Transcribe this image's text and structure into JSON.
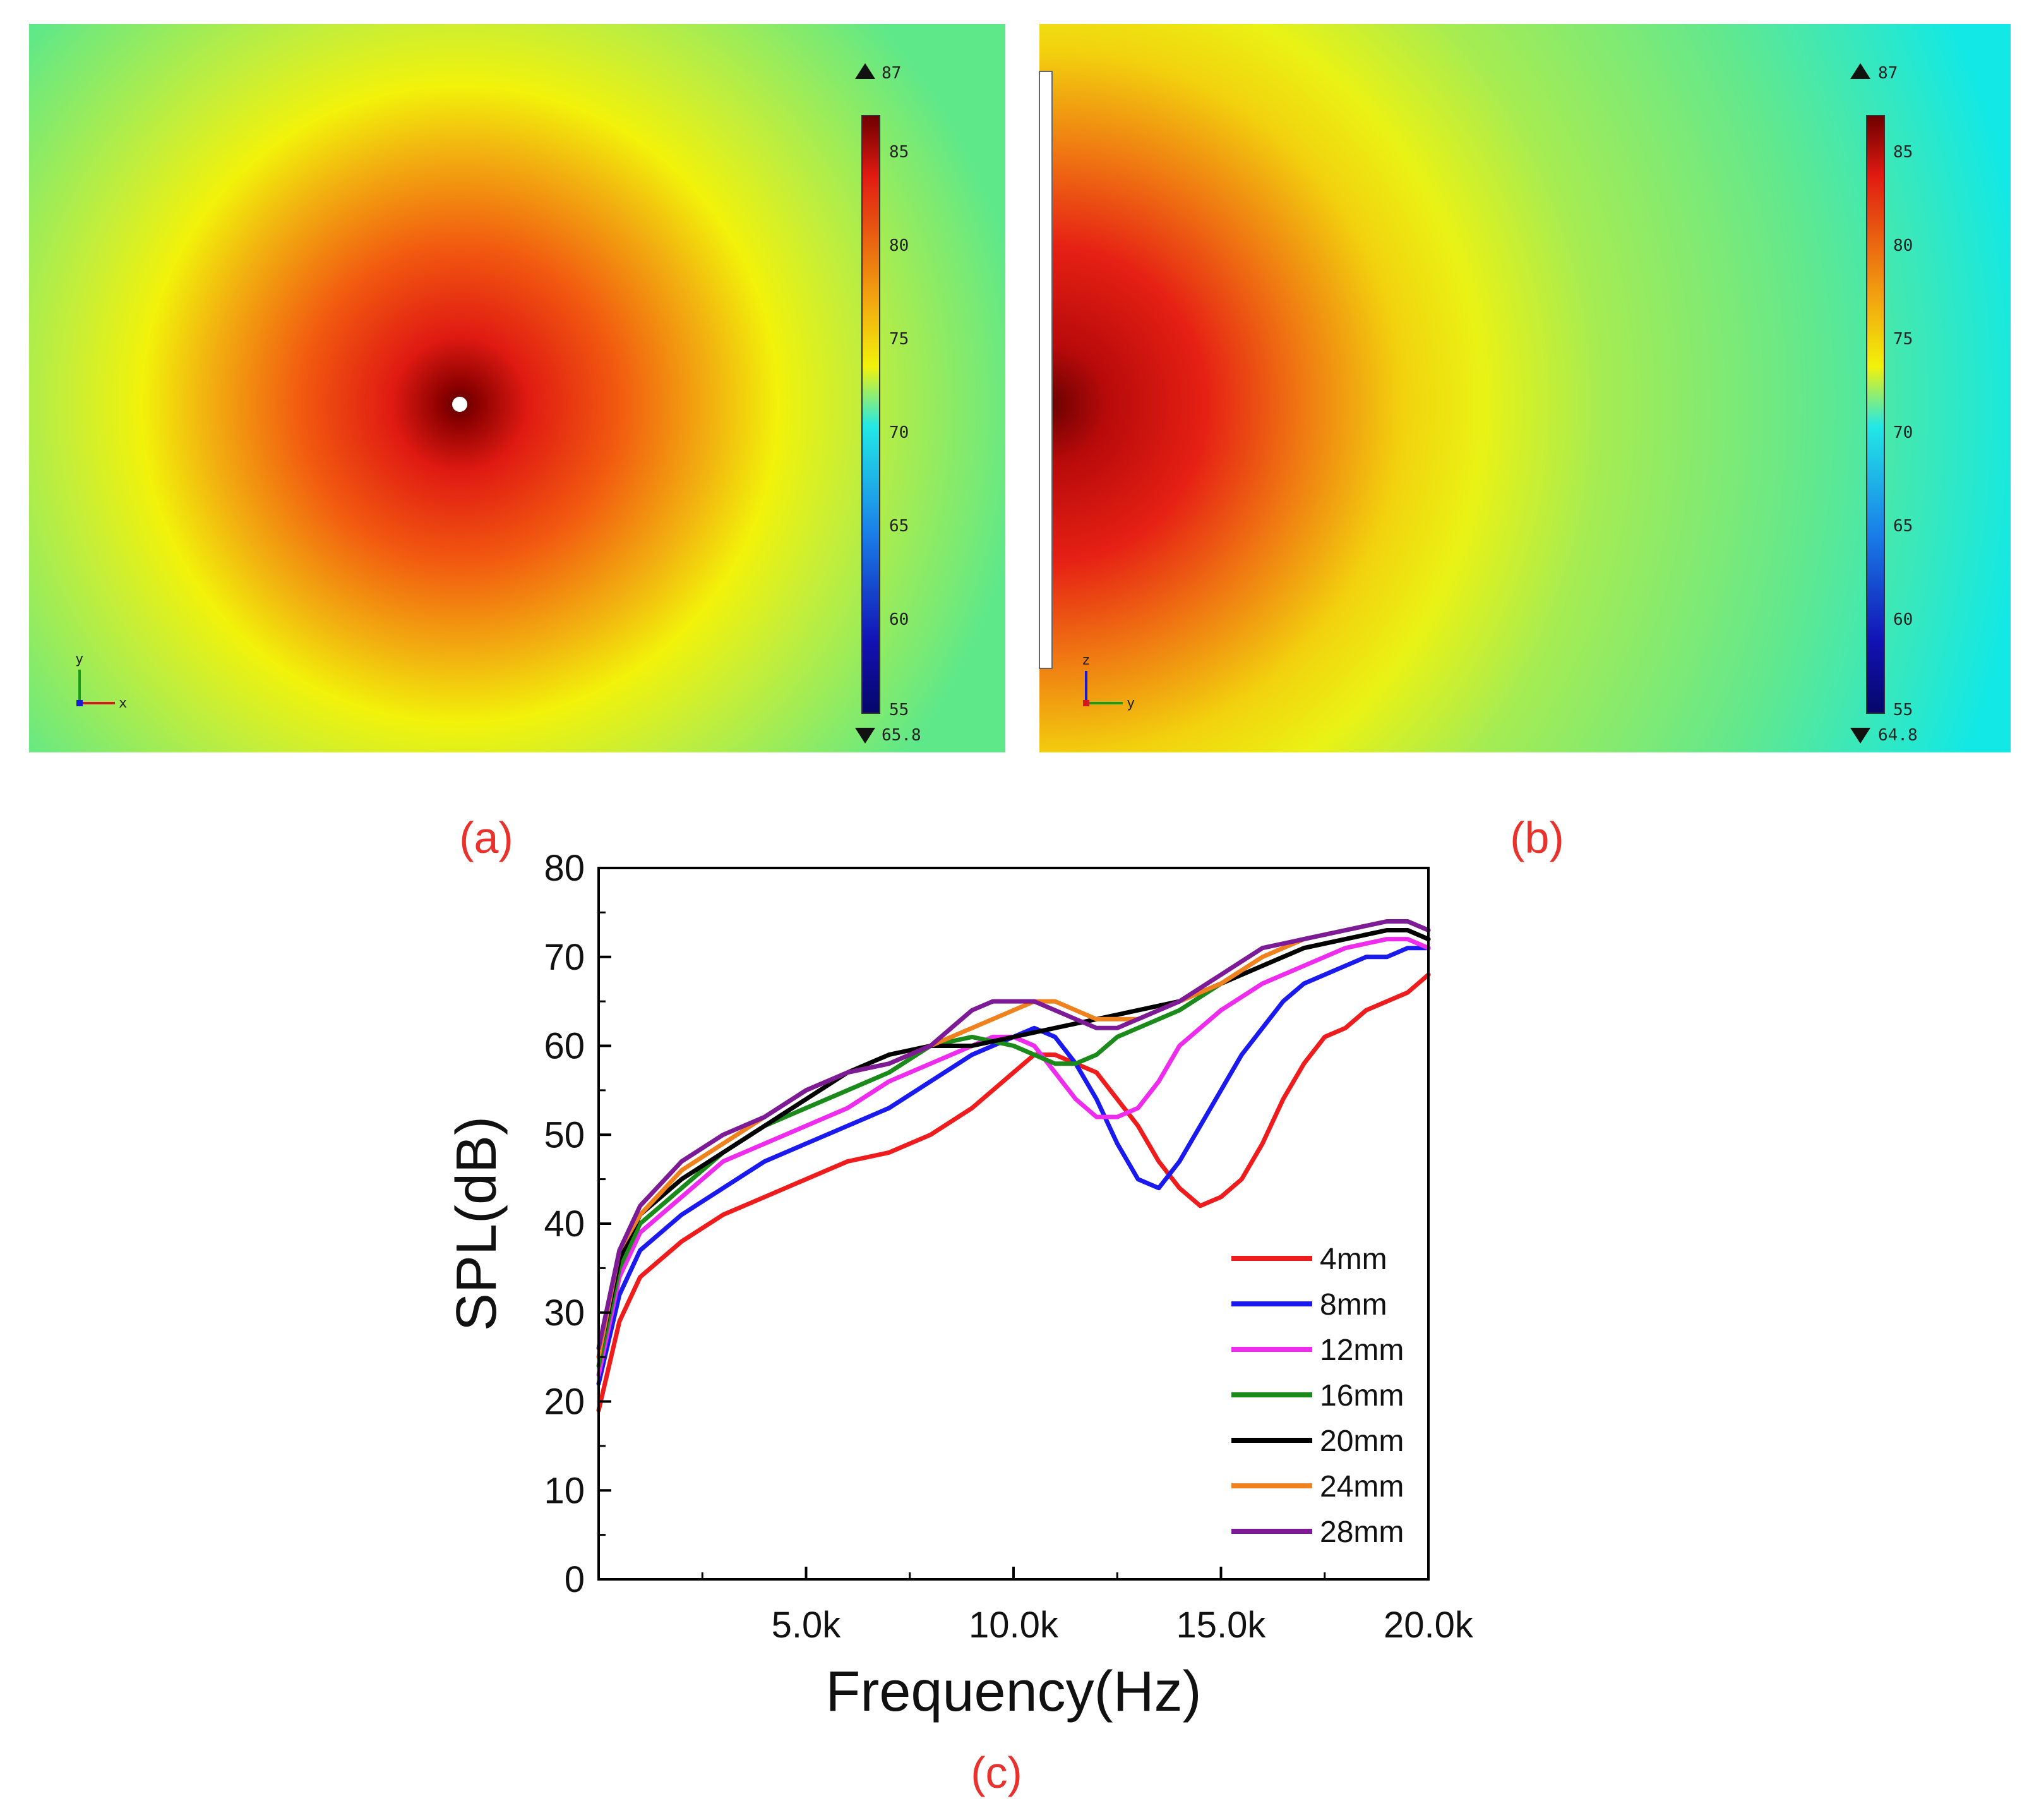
{
  "panels": {
    "a": {
      "label": "(a)",
      "colorbar": {
        "max_marker": "87",
        "min_marker": "65.8",
        "ticks": [
          "85",
          "80",
          "75",
          "70",
          "65",
          "60",
          "55"
        ],
        "range": [
          55,
          87
        ]
      },
      "axes": {
        "vertical": "y",
        "horizontal": "x"
      }
    },
    "b": {
      "label": "(b)",
      "colorbar": {
        "max_marker": "87",
        "min_marker": "64.8",
        "ticks": [
          "85",
          "80",
          "75",
          "70",
          "65",
          "60",
          "55"
        ],
        "range": [
          55,
          87
        ]
      },
      "axes": {
        "vertical": "z",
        "horizontal": "y"
      }
    },
    "c": {
      "label": "(c)"
    }
  },
  "colors": {
    "panel_label": "#e8322b",
    "field_background": "#6ee86e",
    "field_mid": "#f2f20a",
    "field_hot": "#e21a12",
    "field_core": "#7a0000",
    "right_edge_cyan": "#12e8e6"
  },
  "chart_data": {
    "type": "line",
    "title": "",
    "xlabel": "Frequency(Hz)",
    "ylabel": "SPL(dB)",
    "xlim": [
      0,
      20000
    ],
    "ylim": [
      0,
      80
    ],
    "x_ticks": [
      {
        "value": 5000,
        "label": "5.0k"
      },
      {
        "value": 10000,
        "label": "10.0k"
      },
      {
        "value": 15000,
        "label": "15.0k"
      },
      {
        "value": 20000,
        "label": "20.0k"
      }
    ],
    "y_ticks": [
      "0",
      "10",
      "20",
      "30",
      "40",
      "50",
      "60",
      "70",
      "80"
    ],
    "grid": false,
    "legend_position": "bottom-right",
    "series": [
      {
        "name": "4mm",
        "color": "#ee1c1c",
        "x": [
          0,
          500,
          1000,
          2000,
          3000,
          4000,
          5000,
          6000,
          7000,
          8000,
          9000,
          10000,
          10500,
          11000,
          12000,
          13000,
          13500,
          14000,
          14500,
          15000,
          15500,
          16000,
          16500,
          17000,
          17500,
          18000,
          18500,
          19000,
          19500,
          20000
        ],
        "y": [
          19,
          29,
          34,
          38,
          41,
          43,
          45,
          47,
          48,
          50,
          53,
          57,
          59,
          59,
          57,
          51,
          47,
          44,
          42,
          43,
          45,
          49,
          54,
          58,
          61,
          62,
          64,
          65,
          66,
          68
        ]
      },
      {
        "name": "8mm",
        "color": "#1a1aee",
        "x": [
          0,
          500,
          1000,
          2000,
          3000,
          4000,
          5000,
          6000,
          7000,
          8000,
          9000,
          10000,
          10500,
          11000,
          11500,
          12000,
          12500,
          13000,
          13500,
          14000,
          14500,
          15000,
          15500,
          16000,
          16500,
          17000,
          17500,
          18000,
          18500,
          19000,
          19500,
          20000
        ],
        "y": [
          22,
          32,
          37,
          41,
          44,
          47,
          49,
          51,
          53,
          56,
          59,
          61,
          62,
          61,
          58,
          54,
          49,
          45,
          44,
          47,
          51,
          55,
          59,
          62,
          65,
          67,
          68,
          69,
          70,
          70,
          71,
          71
        ]
      },
      {
        "name": "12mm",
        "color": "#ee2cee",
        "x": [
          0,
          500,
          1000,
          2000,
          3000,
          4000,
          5000,
          6000,
          7000,
          8000,
          9000,
          9500,
          10000,
          10500,
          11000,
          11500,
          12000,
          12500,
          13000,
          13500,
          14000,
          14500,
          15000,
          16000,
          17000,
          18000,
          19000,
          19500,
          20000
        ],
        "y": [
          23,
          34,
          39,
          43,
          47,
          49,
          51,
          53,
          56,
          58,
          60,
          61,
          61,
          60,
          57,
          54,
          52,
          52,
          53,
          56,
          60,
          62,
          64,
          67,
          69,
          71,
          72,
          72,
          71
        ]
      },
      {
        "name": "16mm",
        "color": "#1a8a1a",
        "x": [
          0,
          500,
          1000,
          2000,
          3000,
          4000,
          5000,
          6000,
          7000,
          8000,
          9000,
          10000,
          10500,
          11000,
          11500,
          12000,
          12500,
          13000,
          14000,
          15000,
          16000,
          17000,
          18000,
          19000,
          19500,
          20000
        ],
        "y": [
          24,
          35,
          40,
          44,
          48,
          51,
          53,
          55,
          57,
          60,
          61,
          60,
          59,
          58,
          58,
          59,
          61,
          62,
          64,
          67,
          69,
          71,
          72,
          73,
          73,
          72
        ]
      },
      {
        "name": "20mm",
        "color": "#000000",
        "x": [
          0,
          500,
          1000,
          2000,
          3000,
          4000,
          5000,
          6000,
          7000,
          8000,
          9000,
          10000,
          11000,
          12000,
          13000,
          14000,
          15000,
          16000,
          17000,
          18000,
          19000,
          19500,
          20000
        ],
        "y": [
          25,
          36,
          41,
          45,
          48,
          51,
          54,
          57,
          59,
          60,
          60,
          61,
          62,
          63,
          64,
          65,
          67,
          69,
          71,
          72,
          73,
          73,
          72
        ]
      },
      {
        "name": "24mm",
        "color": "#f0821e",
        "x": [
          0,
          500,
          1000,
          2000,
          3000,
          4000,
          5000,
          6000,
          7000,
          8000,
          9000,
          10000,
          10500,
          11000,
          11500,
          12000,
          12500,
          13000,
          14000,
          15000,
          16000,
          17000,
          18000,
          19000,
          19500,
          20000
        ],
        "y": [
          25,
          37,
          41,
          46,
          49,
          52,
          55,
          57,
          58,
          60,
          62,
          64,
          65,
          65,
          64,
          63,
          63,
          63,
          65,
          67,
          70,
          72,
          73,
          74,
          74,
          73
        ]
      },
      {
        "name": "28mm",
        "color": "#7d1a96",
        "x": [
          0,
          500,
          1000,
          2000,
          3000,
          4000,
          5000,
          6000,
          7000,
          8000,
          8500,
          9000,
          9500,
          10000,
          10500,
          11000,
          11500,
          12000,
          12500,
          13000,
          14000,
          15000,
          16000,
          17000,
          18000,
          19000,
          19500,
          20000
        ],
        "y": [
          26,
          37,
          42,
          47,
          50,
          52,
          55,
          57,
          58,
          60,
          62,
          64,
          65,
          65,
          65,
          64,
          63,
          62,
          62,
          63,
          65,
          68,
          71,
          72,
          73,
          74,
          74,
          73
        ]
      }
    ]
  }
}
